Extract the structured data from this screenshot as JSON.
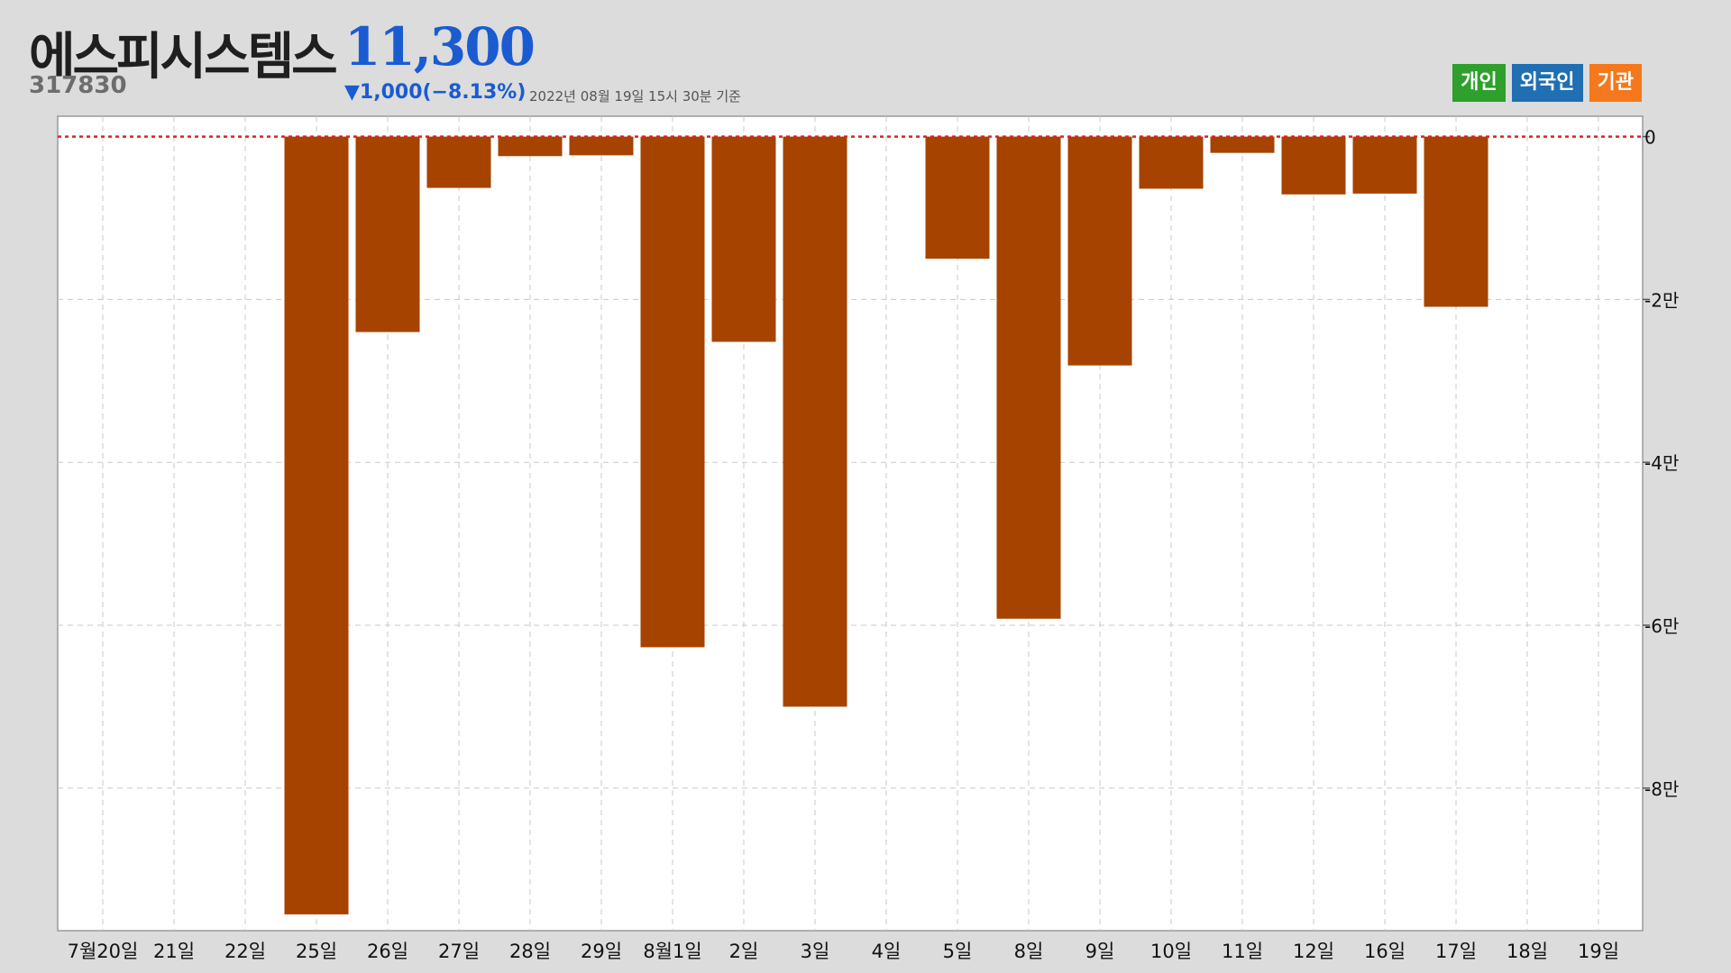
{
  "header": {
    "name": "에스피시스템스",
    "code": "317830",
    "price": "11,300",
    "change": "▼1,000(−8.13%)",
    "as_of": "2022년 08월 19일 15시 30분 기준"
  },
  "legend": [
    {
      "label": "개인",
      "color": "#2ea02b"
    },
    {
      "label": "외국인",
      "color": "#1f6fb2"
    },
    {
      "label": "기관",
      "color": "#f5781c"
    }
  ],
  "colors": {
    "bar": "#a64300",
    "zero_line": "#e02020",
    "grid": "#c8c8c8",
    "plot_bg": "#ffffff",
    "page_bg": "#dcdcdc"
  },
  "chart_data": {
    "type": "bar",
    "series": [
      {
        "values": [
          0,
          0,
          0,
          -95500,
          -24000,
          -6300,
          -2400,
          -2300,
          -62700,
          -25200,
          -70000,
          0,
          -15000,
          -59200,
          -28100,
          -6400,
          -2000,
          -7100,
          -7000,
          -20900,
          0,
          0
        ]
      }
    ],
    "categories": [
      "7월20일",
      "21일",
      "22일",
      "25일",
      "26일",
      "27일",
      "28일",
      "29일",
      "8월1일",
      "2일",
      "3일",
      "4일",
      "5일",
      "8일",
      "9일",
      "10일",
      "11일",
      "12일",
      "16일",
      "17일",
      "18일",
      "19일"
    ],
    "ylim": [
      -97500,
      2500
    ],
    "y_ticks": [
      {
        "value": 0,
        "label": "0"
      },
      {
        "value": -20000,
        "label": "-2만"
      },
      {
        "value": -40000,
        "label": "-4만"
      },
      {
        "value": -60000,
        "label": "-6만"
      },
      {
        "value": -80000,
        "label": "-8만"
      }
    ],
    "grid": true,
    "zero_line": "dotted"
  }
}
